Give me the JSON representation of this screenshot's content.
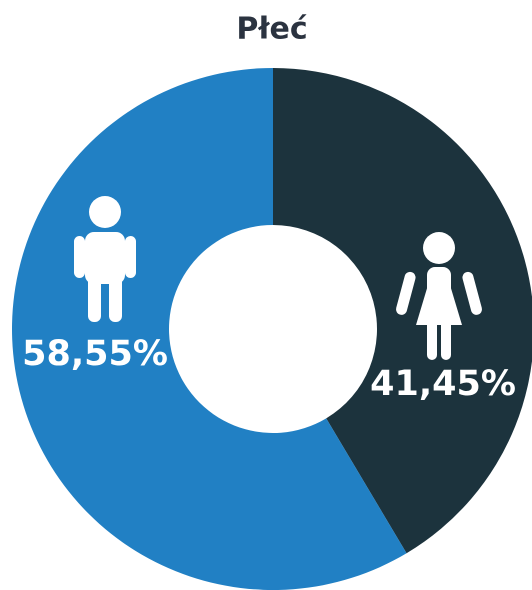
{
  "chart_data": {
    "type": "donut",
    "title": "Płeć",
    "values": [
      41.45,
      58.55
    ],
    "value_labels": [
      "41,45%",
      "58,55%"
    ],
    "colors": [
      "#1c333d",
      "#2180c4"
    ]
  }
}
